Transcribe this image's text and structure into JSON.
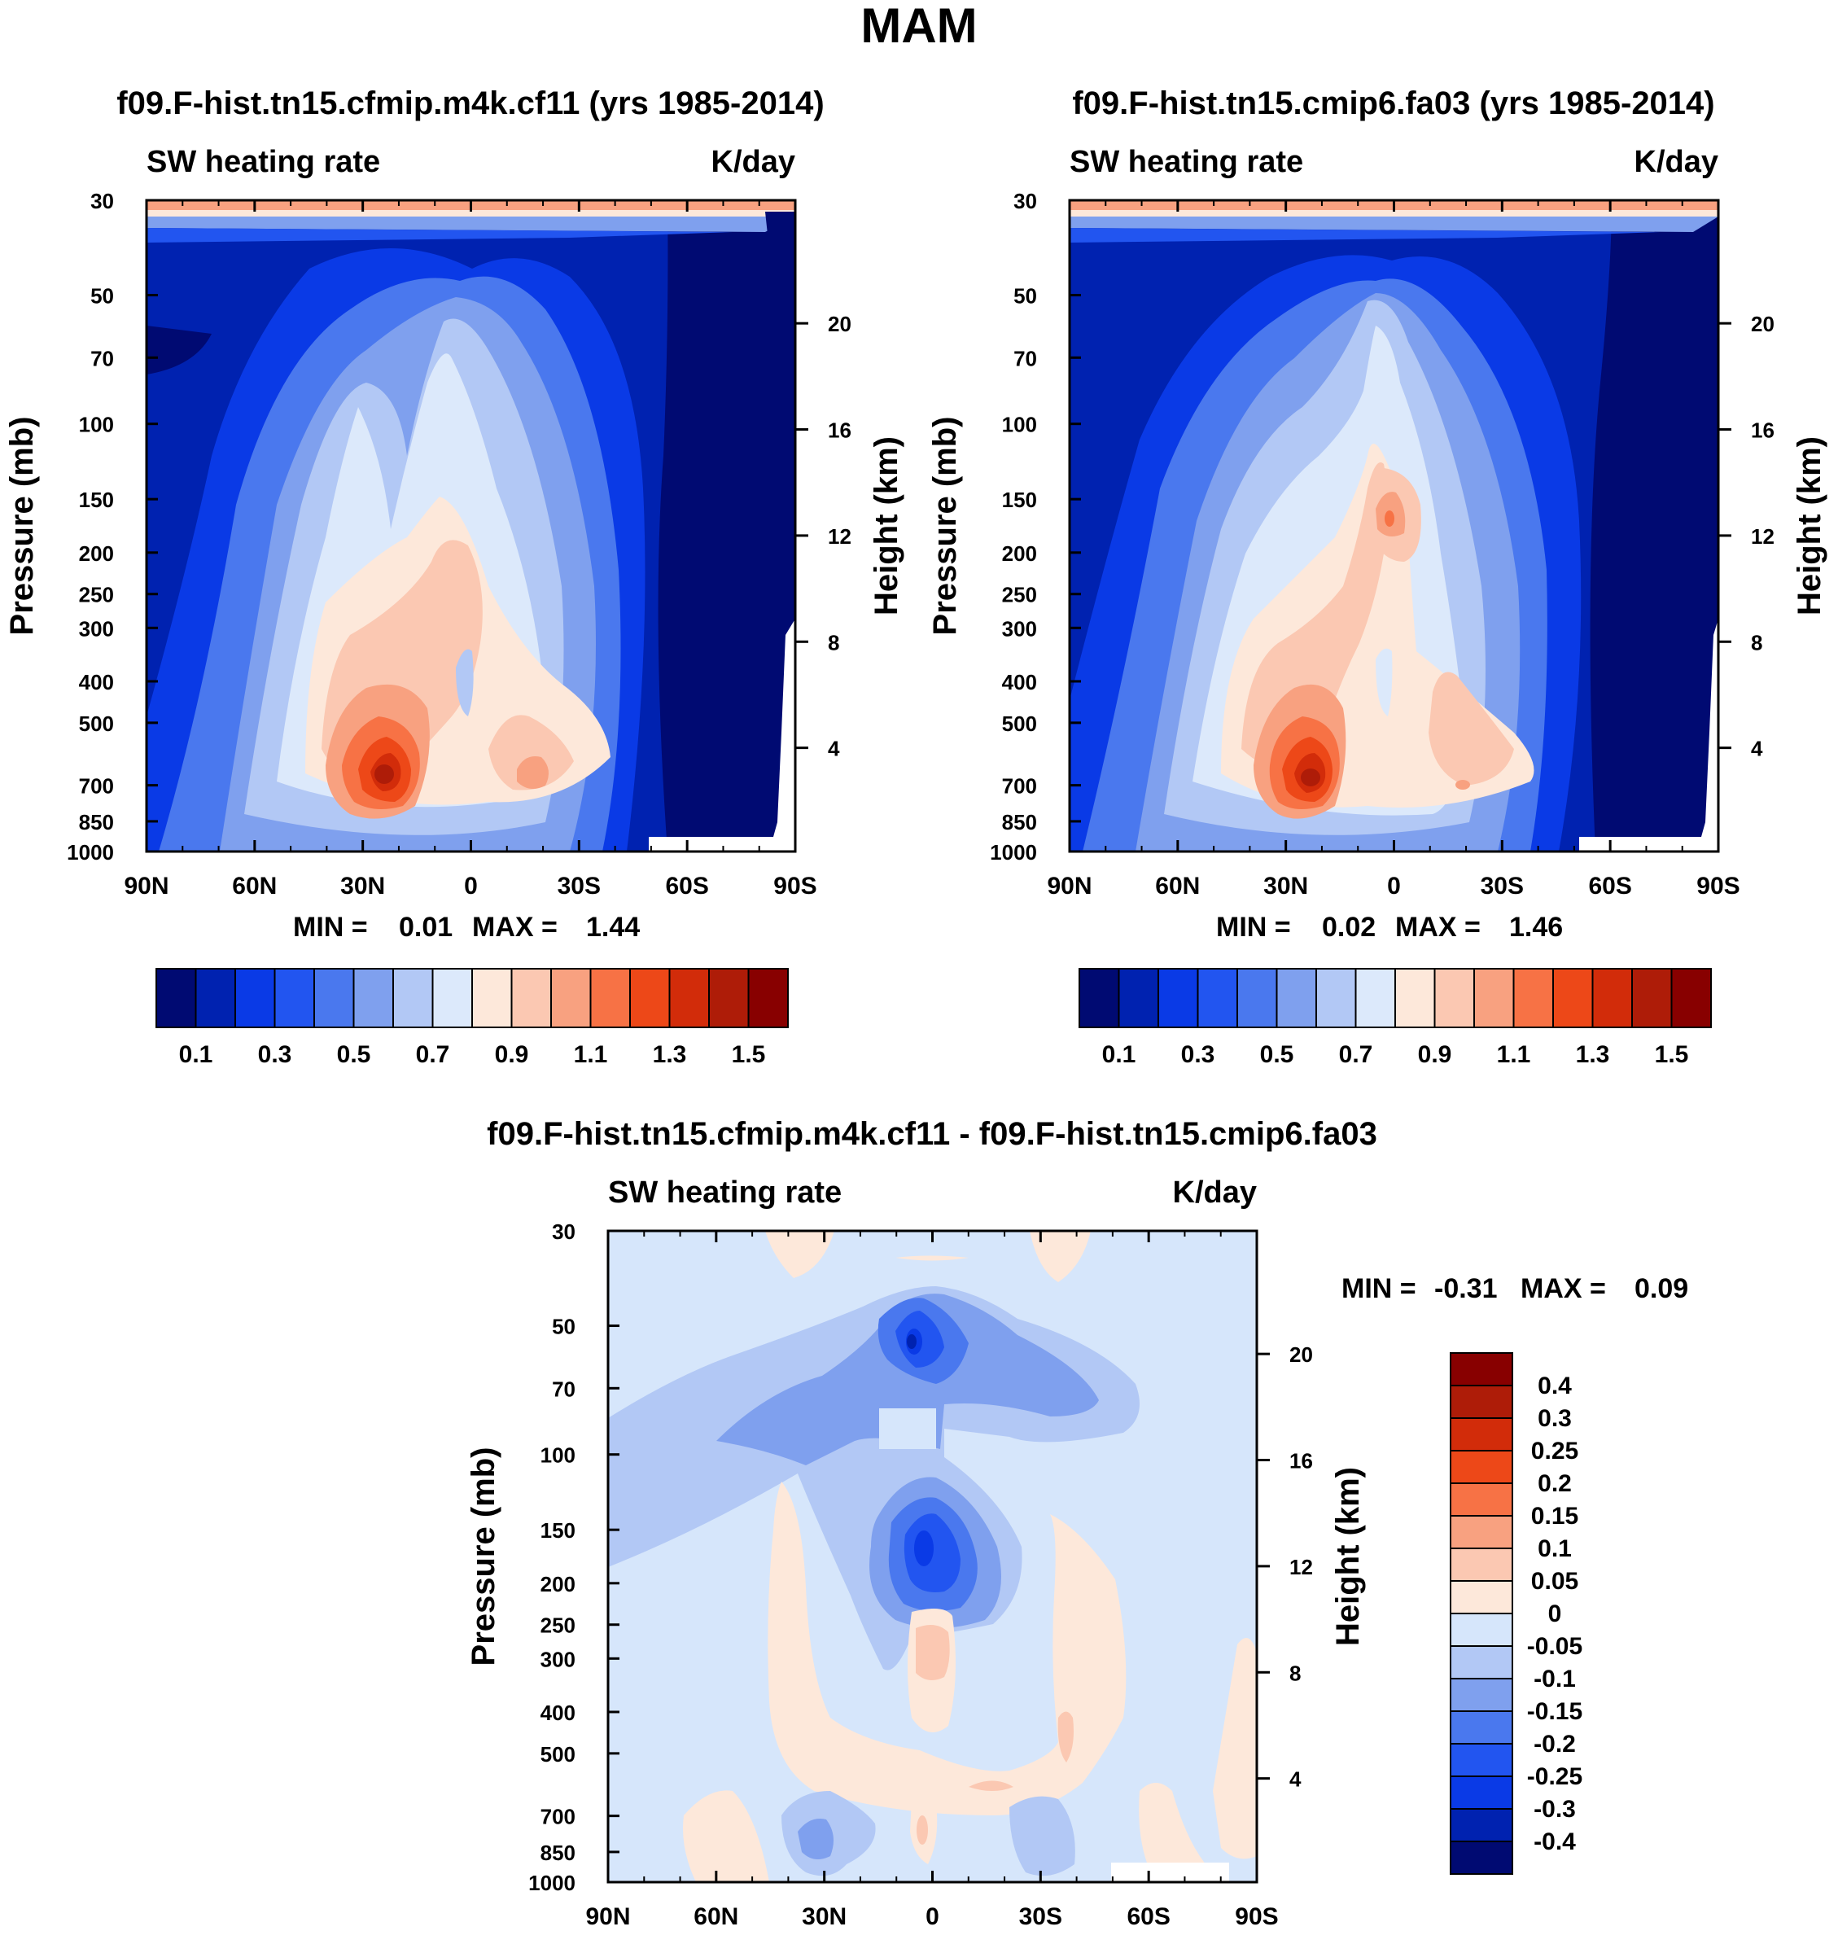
{
  "figure": {
    "title": "MAM"
  },
  "chart_data": [
    {
      "type": "heatmap",
      "id": "panel1",
      "title": "f09.F-hist.tn15.cfmip.m4k.cf11 (yrs 1985-2014)",
      "left_label": "SW heating rate",
      "right_label": "K/day",
      "xlabel": "",
      "ylabel": "Pressure (mb)",
      "ylabel_right": "Height (km)",
      "x_ticks": [
        "90N",
        "60N",
        "30N",
        "0",
        "30S",
        "60S",
        "90S"
      ],
      "y_ticks": [
        30,
        50,
        70,
        100,
        150,
        200,
        250,
        300,
        400,
        500,
        700,
        850,
        1000
      ],
      "height_ticks": [
        20,
        16,
        12,
        8,
        4
      ],
      "stats": {
        "min_label": "MIN =",
        "min": "0.01",
        "max_label": "MAX =",
        "max": "1.44"
      },
      "colorbar": {
        "orientation": "horizontal",
        "levels": [
          0.1,
          0.2,
          0.3,
          0.4,
          0.5,
          0.6,
          0.7,
          0.8,
          0.9,
          1.0,
          1.1,
          1.2,
          1.3,
          1.4,
          1.5
        ],
        "labels": [
          "0.1",
          "0.3",
          "0.5",
          "0.7",
          "0.9",
          "1.1",
          "1.3",
          "1.5"
        ]
      }
    },
    {
      "type": "heatmap",
      "id": "panel2",
      "title": "f09.F-hist.tn15.cmip6.fa03 (yrs 1985-2014)",
      "left_label": "SW heating rate",
      "right_label": "K/day",
      "xlabel": "",
      "ylabel": "Pressure (mb)",
      "ylabel_right": "Height (km)",
      "x_ticks": [
        "90N",
        "60N",
        "30N",
        "0",
        "30S",
        "60S",
        "90S"
      ],
      "y_ticks": [
        30,
        50,
        70,
        100,
        150,
        200,
        250,
        300,
        400,
        500,
        700,
        850,
        1000
      ],
      "height_ticks": [
        20,
        16,
        12,
        8,
        4
      ],
      "stats": {
        "min_label": "MIN =",
        "min": "0.02",
        "max_label": "MAX =",
        "max": "1.46"
      },
      "colorbar": {
        "orientation": "horizontal",
        "levels": [
          0.1,
          0.2,
          0.3,
          0.4,
          0.5,
          0.6,
          0.7,
          0.8,
          0.9,
          1.0,
          1.1,
          1.2,
          1.3,
          1.4,
          1.5
        ],
        "labels": [
          "0.1",
          "0.3",
          "0.5",
          "0.7",
          "0.9",
          "1.1",
          "1.3",
          "1.5"
        ]
      }
    },
    {
      "type": "heatmap",
      "id": "panel3",
      "title": "f09.F-hist.tn15.cfmip.m4k.cf11 - f09.F-hist.tn15.cmip6.fa03",
      "left_label": "SW heating rate",
      "right_label": "K/day",
      "xlabel": "",
      "ylabel": "Pressure (mb)",
      "ylabel_right": "Height (km)",
      "x_ticks": [
        "90N",
        "60N",
        "30N",
        "0",
        "30S",
        "60S",
        "90S"
      ],
      "y_ticks": [
        30,
        50,
        70,
        100,
        150,
        200,
        250,
        300,
        400,
        500,
        700,
        850,
        1000
      ],
      "height_ticks": [
        20,
        16,
        12,
        8,
        4
      ],
      "stats": {
        "min_label": "MIN =",
        "min": "-0.31",
        "max_label": "MAX =",
        "max": "0.09"
      },
      "colorbar": {
        "orientation": "vertical",
        "labels": [
          "0.4",
          "0.3",
          "0.25",
          "0.2",
          "0.15",
          "0.1",
          "0.05",
          "0",
          "-0.05",
          "-0.1",
          "-0.15",
          "-0.2",
          "-0.25",
          "-0.3",
          "-0.4"
        ]
      }
    }
  ],
  "palettes": {
    "abs": [
      "#000a72",
      "#0022b0",
      "#0a3ae6",
      "#2255f0",
      "#4a78ee",
      "#7fa0ee",
      "#b2c8f5",
      "#dce9fb",
      "#fde8da",
      "#fbc8b2",
      "#f8a180",
      "#f77245",
      "#ed4818",
      "#d22c0a",
      "#ae1c08",
      "#880000"
    ],
    "diff": [
      "#880000",
      "#ae1c08",
      "#d22c0a",
      "#ed4818",
      "#f77245",
      "#f8a180",
      "#fbc8b2",
      "#fde8da",
      "#d6e6fb",
      "#b2c8f5",
      "#7fa0ee",
      "#4a78ee",
      "#2255f0",
      "#0a3ae6",
      "#0022b0",
      "#000a72"
    ]
  }
}
